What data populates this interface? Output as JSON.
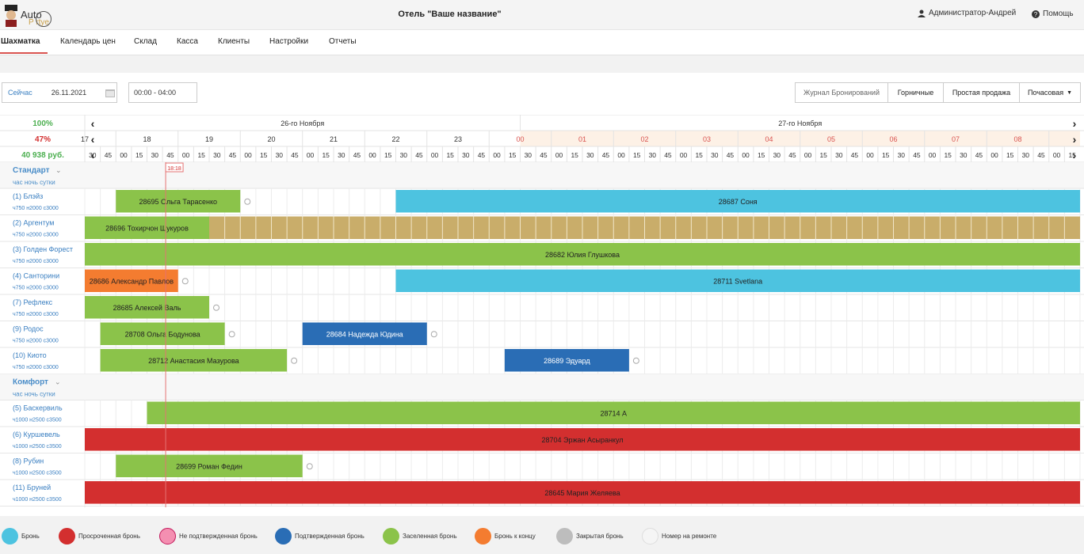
{
  "header": {
    "logo_text_1": "Auto",
    "logo_text_2": "P    rtye",
    "title": "Отель \"Ваше название\"",
    "user": "Администратор-Андрей",
    "help": "Помощь"
  },
  "nav": {
    "tabs": [
      "Шахматка",
      "Календарь цен",
      "Склад",
      "Касса",
      "Клиенты",
      "Настройки",
      "Отчеты"
    ]
  },
  "toolbar": {
    "now_label": "Сейчас",
    "date": "26.11.2021",
    "time_range": "00:00 - 04:00",
    "journal": "Журнал Бронирований",
    "maids": "Горничные",
    "simple_sale": "Простая продажа",
    "hourly": "Почасовая"
  },
  "stats": {
    "occupancy": "100%",
    "percent": "47%",
    "revenue": "40 938 руб."
  },
  "timeline": {
    "day1": "26-го Ноября",
    "day2": "27-го Ноября",
    "hours_day1": [
      "17",
      "18",
      "19",
      "20",
      "21",
      "22",
      "23"
    ],
    "hours_day2": [
      "00",
      "01",
      "02",
      "03",
      "04",
      "05",
      "06",
      "07",
      "08"
    ],
    "minutes": [
      "00",
      "15",
      "30",
      "45"
    ],
    "current_time": "18:18"
  },
  "categories": [
    {
      "name": "Стандарт",
      "sub": "час ночь сутки",
      "rooms": [
        {
          "name": "(1) Блэйз",
          "price": "ч750 н2000 с3000"
        },
        {
          "name": "(2) Аргентум",
          "price": "ч750 н2000 с3000"
        },
        {
          "name": "(3) Голден Форест",
          "price": "ч750 н2000 с3000"
        },
        {
          "name": "(4) Санторини",
          "price": "ч750 н2000 с3000"
        },
        {
          "name": "(7) Рефлекс",
          "price": "ч750 н2000 с3000"
        },
        {
          "name": "(9) Родос",
          "price": "ч750 н2000 с3000"
        },
        {
          "name": "(10) Киото",
          "price": "ч750 н2000 с3000"
        }
      ]
    },
    {
      "name": "Комфорт",
      "sub": "час ночь сутки",
      "rooms": [
        {
          "name": "(5) Баскервиль",
          "price": "ч1000 н2500 с3500"
        },
        {
          "name": "(6) Куршевель",
          "price": "ч1000 н2500 с3500"
        },
        {
          "name": "(8) Рубин",
          "price": "ч1000 н2500 с3500"
        },
        {
          "name": "(11) Бруней",
          "price": "ч1000 н2500 с3500"
        }
      ]
    }
  ],
  "bookings": [
    {
      "row": 0,
      "start": 2,
      "end": 10,
      "label": "28695 Ольга Тарасенко",
      "color": "#8bc34a"
    },
    {
      "row": 0,
      "start": 20,
      "end": 64,
      "label": "28687 Соня",
      "color": "#4dc3e0"
    },
    {
      "row": 1,
      "start": 0,
      "end": 8,
      "label": "28696 Тохирчон Шукуров",
      "color": "#8bc34a"
    },
    {
      "row": 1,
      "start": 8,
      "end": 64,
      "label": "",
      "color": "#c9ad6a",
      "striped": true
    },
    {
      "row": 2,
      "start": 0,
      "end": 64,
      "label": "28682 Юлия Глушкова",
      "color": "#8bc34a"
    },
    {
      "row": 3,
      "start": 0,
      "end": 6,
      "label": "28686 Александр Павлов",
      "color": "#f47c30"
    },
    {
      "row": 3,
      "start": 20,
      "end": 64,
      "label": "28711 Svetlana",
      "color": "#4dc3e0"
    },
    {
      "row": 4,
      "start": 0,
      "end": 8,
      "label": "28685 Алексей Валь",
      "color": "#8bc34a"
    },
    {
      "row": 5,
      "start": 1,
      "end": 9,
      "label": "28708 Ольга Бодунова",
      "color": "#8bc34a"
    },
    {
      "row": 5,
      "start": 14,
      "end": 22,
      "label": "28684 Надежда Юдина",
      "color": "#2a6db5",
      "white": true
    },
    {
      "row": 6,
      "start": 1,
      "end": 13,
      "label": "28712 Анастасия Мазурова",
      "color": "#8bc34a"
    },
    {
      "row": 6,
      "start": 27,
      "end": 35,
      "label": "28689 Эдуард",
      "color": "#2a6db5",
      "white": true
    },
    {
      "row": 7,
      "start": 4,
      "end": 64,
      "label": "28714 А",
      "color": "#8bc34a"
    },
    {
      "row": 8,
      "start": 0,
      "end": 64,
      "label": "28704 Эржан Асыранкул",
      "color": "#d32f2f"
    },
    {
      "row": 9,
      "start": 2,
      "end": 14,
      "label": "28699 Роман Федин",
      "color": "#8bc34a"
    },
    {
      "row": 10,
      "start": 0,
      "end": 64,
      "label": "28645 Мария Желяева",
      "color": "#d32f2f"
    }
  ],
  "legend": [
    {
      "label": "Бронь",
      "color": "#4dc3e0"
    },
    {
      "label": "Просроченная бронь",
      "color": "#d32f2f"
    },
    {
      "label": "Не подтвержденная бронь",
      "color": "#f48fb1"
    },
    {
      "label": "Подтвержденная бронь",
      "color": "#2a6db5"
    },
    {
      "label": "Заселенная бронь",
      "color": "#8bc34a"
    },
    {
      "label": "Бронь к концу",
      "color": "#f47c30"
    },
    {
      "label": "Закрытая бронь",
      "color": "#bdbdbd"
    },
    {
      "label": "Номер на ремонте",
      "color": "#f5f5f5"
    }
  ]
}
